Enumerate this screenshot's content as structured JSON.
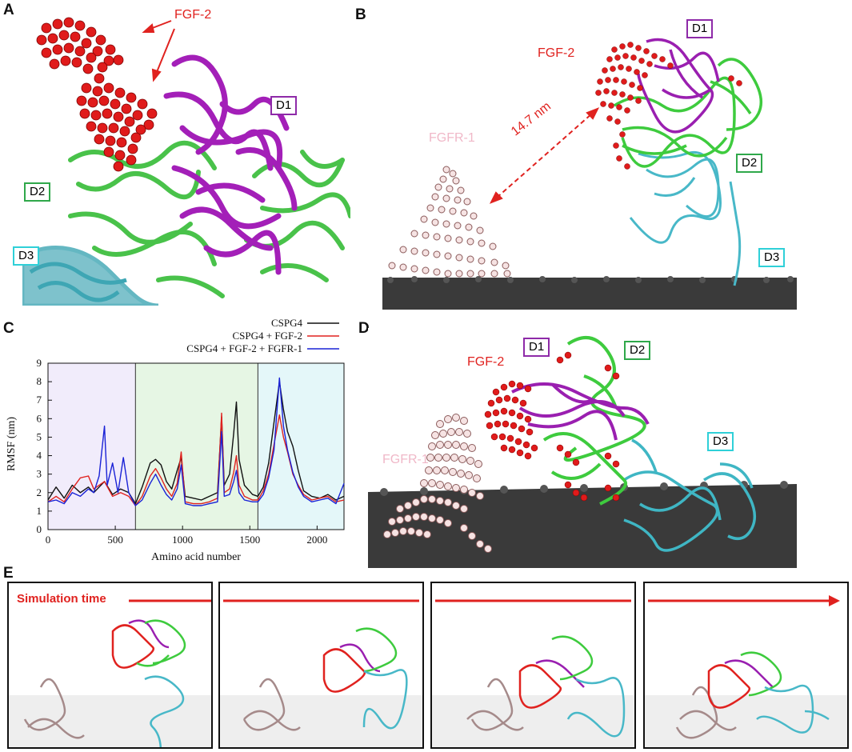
{
  "panels": {
    "A": {
      "letter": "A",
      "fgf2": "FGF-2",
      "d1": "D1",
      "d2": "D2",
      "d3": "D3"
    },
    "B": {
      "letter": "B",
      "fgf2": "FGF-2",
      "fgfr1": "FGFR-1",
      "distance": "14.7 nm",
      "d1": "D1",
      "d2": "D2",
      "d3": "D3"
    },
    "C": {
      "letter": "C"
    },
    "D": {
      "letter": "D",
      "fgf2": "FGF-2",
      "fgfr1": "FGFR-1",
      "d1": "D1",
      "d2": "D2",
      "d3": "D3"
    },
    "E": {
      "letter": "E",
      "sim_time": "Simulation time"
    }
  },
  "colors": {
    "fgf2": "#e0221f",
    "d1": "#8e2aa8",
    "d2": "#2fa84a",
    "d3": "#2fd0d8",
    "fgfr1": "#f0b8c8",
    "membrane": "#3a3a3a",
    "series_cspg4": "#111111",
    "series_fgf2": "#e0221f",
    "series_fgfr1": "#1a22d6"
  },
  "chart_data": {
    "type": "line",
    "title": "",
    "xlabel": "Amino acid number",
    "ylabel": "RMSF (nm)",
    "xlim": [
      0,
      2200
    ],
    "ylim": [
      0,
      9
    ],
    "xticks": [
      0,
      500,
      1000,
      1500,
      2000
    ],
    "yticks": [
      0,
      1,
      2,
      3,
      4,
      5,
      6,
      7,
      8,
      9
    ],
    "legend_position": "top-right",
    "regions": [
      {
        "x": [
          0,
          650
        ],
        "color": "#f1ecfb"
      },
      {
        "x": [
          650,
          1560
        ],
        "color": "#e6f6e4"
      },
      {
        "x": [
          1560,
          2200
        ],
        "color": "#e4f7f9"
      }
    ],
    "series": [
      {
        "name": "CSPG4",
        "color": "#111111",
        "points": [
          [
            0,
            1.6
          ],
          [
            60,
            2.3
          ],
          [
            120,
            1.7
          ],
          [
            180,
            2.4
          ],
          [
            240,
            2.0
          ],
          [
            300,
            2.3
          ],
          [
            340,
            2.0
          ],
          [
            420,
            2.6
          ],
          [
            480,
            1.9
          ],
          [
            540,
            2.2
          ],
          [
            600,
            2.0
          ],
          [
            650,
            1.4
          ],
          [
            700,
            2.3
          ],
          [
            760,
            3.6
          ],
          [
            800,
            3.8
          ],
          [
            840,
            3.5
          ],
          [
            880,
            2.6
          ],
          [
            920,
            2.2
          ],
          [
            960,
            3.2
          ],
          [
            990,
            3.9
          ],
          [
            1020,
            1.8
          ],
          [
            1080,
            1.7
          ],
          [
            1140,
            1.6
          ],
          [
            1200,
            1.8
          ],
          [
            1260,
            2.0
          ],
          [
            1290,
            6.1
          ],
          [
            1310,
            2.4
          ],
          [
            1350,
            3.0
          ],
          [
            1380,
            5.2
          ],
          [
            1400,
            6.9
          ],
          [
            1420,
            3.8
          ],
          [
            1460,
            2.4
          ],
          [
            1520,
            1.9
          ],
          [
            1560,
            1.8
          ],
          [
            1600,
            2.3
          ],
          [
            1640,
            3.6
          ],
          [
            1680,
            5.8
          ],
          [
            1720,
            8.0
          ],
          [
            1750,
            6.5
          ],
          [
            1780,
            5.3
          ],
          [
            1820,
            4.5
          ],
          [
            1860,
            3.2
          ],
          [
            1900,
            2.1
          ],
          [
            1960,
            1.8
          ],
          [
            2020,
            1.7
          ],
          [
            2080,
            1.9
          ],
          [
            2140,
            1.6
          ],
          [
            2200,
            1.8
          ]
        ]
      },
      {
        "name": "CSPG4 + FGF-2",
        "color": "#e0221f",
        "points": [
          [
            0,
            1.5
          ],
          [
            60,
            1.8
          ],
          [
            120,
            1.5
          ],
          [
            180,
            2.2
          ],
          [
            240,
            2.8
          ],
          [
            300,
            2.9
          ],
          [
            340,
            2.2
          ],
          [
            420,
            2.6
          ],
          [
            480,
            1.8
          ],
          [
            540,
            2.0
          ],
          [
            600,
            1.8
          ],
          [
            650,
            1.3
          ],
          [
            700,
            1.8
          ],
          [
            760,
            2.9
          ],
          [
            800,
            3.3
          ],
          [
            840,
            2.8
          ],
          [
            880,
            2.2
          ],
          [
            920,
            1.8
          ],
          [
            960,
            2.5
          ],
          [
            990,
            4.2
          ],
          [
            1020,
            1.5
          ],
          [
            1080,
            1.4
          ],
          [
            1140,
            1.4
          ],
          [
            1200,
            1.5
          ],
          [
            1260,
            1.7
          ],
          [
            1290,
            6.3
          ],
          [
            1310,
            2.0
          ],
          [
            1350,
            2.2
          ],
          [
            1380,
            3.1
          ],
          [
            1400,
            4.0
          ],
          [
            1420,
            2.4
          ],
          [
            1460,
            1.8
          ],
          [
            1520,
            1.6
          ],
          [
            1560,
            1.6
          ],
          [
            1600,
            2.1
          ],
          [
            1640,
            3.0
          ],
          [
            1680,
            4.6
          ],
          [
            1720,
            6.2
          ],
          [
            1750,
            5.0
          ],
          [
            1780,
            4.2
          ],
          [
            1820,
            3.0
          ],
          [
            1860,
            2.4
          ],
          [
            1900,
            1.9
          ],
          [
            1960,
            1.6
          ],
          [
            2020,
            1.7
          ],
          [
            2080,
            1.8
          ],
          [
            2140,
            1.5
          ],
          [
            2200,
            1.6
          ]
        ]
      },
      {
        "name": "CSPG4 + FGF-2 + FGFR-1",
        "color": "#1a22d6",
        "points": [
          [
            0,
            1.5
          ],
          [
            60,
            1.6
          ],
          [
            120,
            1.4
          ],
          [
            180,
            2.0
          ],
          [
            240,
            1.8
          ],
          [
            300,
            2.2
          ],
          [
            340,
            2.0
          ],
          [
            380,
            2.9
          ],
          [
            420,
            5.6
          ],
          [
            440,
            2.4
          ],
          [
            480,
            3.6
          ],
          [
            520,
            2.0
          ],
          [
            560,
            3.9
          ],
          [
            600,
            2.0
          ],
          [
            650,
            1.3
          ],
          [
            700,
            1.6
          ],
          [
            760,
            2.5
          ],
          [
            800,
            3.0
          ],
          [
            840,
            2.4
          ],
          [
            880,
            1.9
          ],
          [
            920,
            1.6
          ],
          [
            960,
            2.2
          ],
          [
            990,
            3.5
          ],
          [
            1020,
            1.4
          ],
          [
            1080,
            1.3
          ],
          [
            1140,
            1.3
          ],
          [
            1200,
            1.4
          ],
          [
            1260,
            1.5
          ],
          [
            1290,
            5.3
          ],
          [
            1310,
            1.8
          ],
          [
            1350,
            1.9
          ],
          [
            1380,
            2.6
          ],
          [
            1400,
            3.2
          ],
          [
            1420,
            2.0
          ],
          [
            1460,
            1.6
          ],
          [
            1520,
            1.5
          ],
          [
            1560,
            1.5
          ],
          [
            1600,
            1.9
          ],
          [
            1640,
            2.8
          ],
          [
            1680,
            4.3
          ],
          [
            1720,
            8.2
          ],
          [
            1750,
            5.6
          ],
          [
            1780,
            4.3
          ],
          [
            1820,
            3.1
          ],
          [
            1860,
            2.3
          ],
          [
            1900,
            1.8
          ],
          [
            1960,
            1.5
          ],
          [
            2020,
            1.6
          ],
          [
            2080,
            1.7
          ],
          [
            2140,
            1.4
          ],
          [
            2200,
            2.5
          ]
        ]
      }
    ]
  }
}
